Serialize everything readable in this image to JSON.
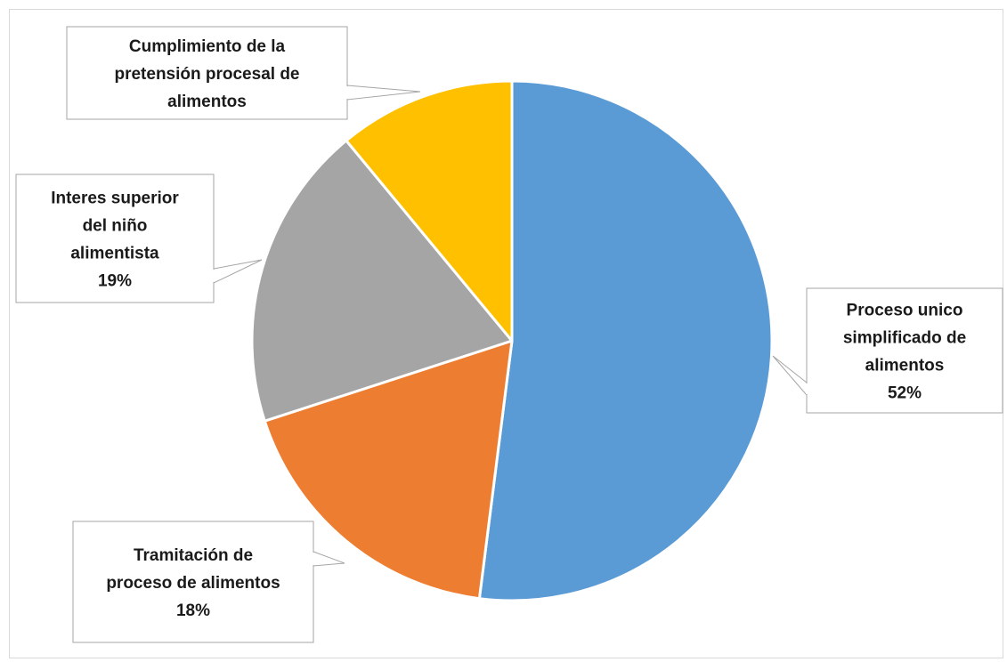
{
  "chart_data": {
    "type": "pie",
    "title": "",
    "slices": [
      {
        "name": "Proceso unico simplificado de alimentos",
        "label_lines": [
          "Proceso unico",
          "simplificado de",
          "alimentos",
          "52%"
        ],
        "value": 52,
        "color": "#5b9bd5"
      },
      {
        "name": "Tramitación de proceso de alimentos",
        "label_lines": [
          "Tramitación de",
          "proceso de alimentos",
          "18%"
        ],
        "value": 18,
        "color": "#ed7d31"
      },
      {
        "name": "Interes superior del niño alimentista",
        "label_lines": [
          "Interes superior",
          "del niño",
          "alimentista",
          "19%"
        ],
        "value": 19,
        "color": "#a5a5a5"
      },
      {
        "name": "Cumplimiento de la pretensión procesal de alimentos",
        "label_lines": [
          "Cumplimiento de la",
          "pretensión procesal de",
          "alimentos"
        ],
        "value": 11,
        "color": "#ffc000"
      }
    ],
    "start_angle_deg": 0,
    "direction": "clockwise",
    "legend": "none",
    "data_labels": "callouts"
  }
}
